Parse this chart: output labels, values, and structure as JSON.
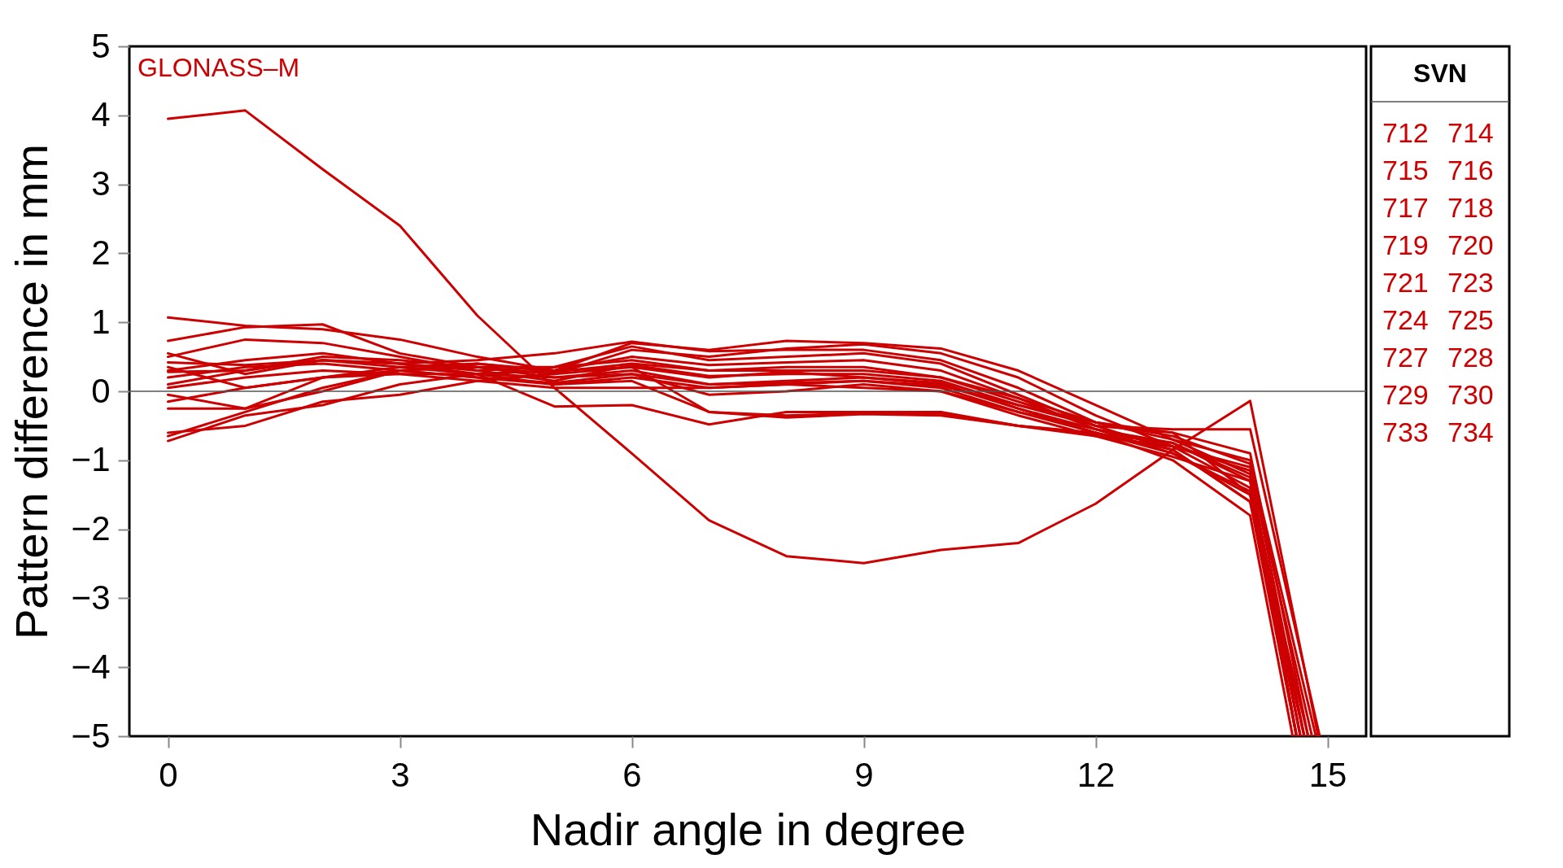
{
  "chart_data": {
    "type": "line",
    "xlabel": "Nadir angle in degree",
    "ylabel": "Pattern difference in mm",
    "legend_title": "SVN",
    "legend": "right",
    "grid": false,
    "line_style": "solid",
    "annotations": [
      "GLONASS–M"
    ],
    "xlim": [
      -0.5,
      15.5
    ],
    "xticks": [
      0,
      3,
      6,
      9,
      12,
      15
    ],
    "ylim": [
      -5,
      5
    ],
    "yticks": [
      -5,
      -4,
      -3,
      -2,
      -1,
      0,
      1,
      2,
      3,
      4,
      5
    ],
    "ref_lines": [
      {
        "axis": "y",
        "value": 0,
        "color": "#555555"
      }
    ],
    "series": [
      {
        "name": "712",
        "color": "#cc0000",
        "x": [
          0,
          1,
          2,
          3,
          4,
          5,
          6,
          7,
          8,
          9,
          10,
          11,
          12,
          13,
          14,
          14.88
        ],
        "values": [
          3.95,
          4.07,
          3.22,
          2.4,
          1.1,
          0.05,
          -0.9,
          -1.87,
          -2.39,
          -2.49,
          -2.3,
          -2.2,
          -1.63,
          -0.85,
          -0.14,
          -5
        ]
      },
      {
        "name": "714",
        "color": "#cc0000",
        "x": [
          0,
          1,
          2,
          3,
          4,
          5,
          6,
          7,
          8,
          9,
          10,
          11,
          12,
          13,
          14,
          14.85
        ],
        "values": [
          1.07,
          0.95,
          0.9,
          0.75,
          0.5,
          0.3,
          0.7,
          0.6,
          0.73,
          0.7,
          0.62,
          0.3,
          -0.2,
          -0.7,
          -1.0,
          -5
        ]
      },
      {
        "name": "715",
        "color": "#cc0000",
        "x": [
          0,
          1,
          2,
          3,
          4,
          5,
          6,
          7,
          8,
          9,
          10,
          11,
          12,
          13,
          14,
          14.8
        ],
        "values": [
          0.73,
          0.93,
          0.97,
          0.55,
          0.35,
          0.25,
          0.6,
          0.5,
          0.62,
          0.68,
          0.55,
          0.2,
          -0.35,
          -0.8,
          -1.1,
          -5
        ]
      },
      {
        "name": "716",
        "color": "#cc0000",
        "x": [
          0,
          1,
          2,
          3,
          4,
          5,
          6,
          7,
          8,
          9,
          10,
          11,
          12,
          13,
          14,
          14.75
        ],
        "values": [
          0.55,
          0.25,
          0.45,
          0.4,
          0.45,
          0.55,
          0.72,
          0.58,
          0.6,
          0.6,
          0.45,
          0.05,
          -0.45,
          -0.6,
          -1.5,
          -5
        ]
      },
      {
        "name": "717",
        "color": "#cc0000",
        "x": [
          0,
          1,
          2,
          3,
          4,
          5,
          6,
          7,
          8,
          9,
          10,
          11,
          12,
          13,
          14,
          14.7
        ],
        "values": [
          0.5,
          0.75,
          0.7,
          0.5,
          0.3,
          0.35,
          0.65,
          0.45,
          0.5,
          0.55,
          0.4,
          -0.05,
          -0.5,
          -0.85,
          -1.6,
          -5
        ]
      },
      {
        "name": "718",
        "color": "#cc0000",
        "x": [
          0,
          1,
          2,
          3,
          4,
          5,
          6,
          7,
          8,
          9,
          10,
          11,
          12,
          13,
          14,
          14.7
        ],
        "values": [
          0.42,
          0.38,
          0.45,
          0.35,
          0.25,
          0.3,
          0.5,
          0.38,
          0.42,
          0.45,
          0.3,
          -0.1,
          -0.55,
          -0.75,
          -1.3,
          -5
        ]
      },
      {
        "name": "719",
        "color": "#cc0000",
        "x": [
          0,
          1,
          2,
          3,
          4,
          5,
          6,
          7,
          8,
          9,
          10,
          11,
          12,
          13,
          14,
          14.9
        ],
        "values": [
          0.35,
          0.05,
          0.2,
          0.35,
          0.4,
          0.28,
          0.4,
          0.3,
          0.3,
          0.3,
          0.2,
          -0.15,
          -0.5,
          -0.55,
          -0.55,
          -5
        ]
      },
      {
        "name": "720",
        "color": "#cc0000",
        "x": [
          0,
          1,
          2,
          3,
          4,
          5,
          6,
          7,
          8,
          9,
          10,
          11,
          12,
          13,
          14,
          14.65
        ],
        "values": [
          0.3,
          0.45,
          0.55,
          0.4,
          0.3,
          0.15,
          0.38,
          0.22,
          0.25,
          0.25,
          0.15,
          -0.2,
          -0.45,
          -0.7,
          -1.2,
          -5
        ]
      },
      {
        "name": "721",
        "color": "#cc0000",
        "x": [
          0,
          1,
          2,
          3,
          4,
          5,
          6,
          7,
          8,
          9,
          10,
          11,
          12,
          13,
          14,
          14.65
        ],
        "values": [
          0.28,
          0.3,
          0.5,
          0.45,
          0.35,
          0.2,
          0.3,
          0.1,
          0.15,
          0.2,
          0.1,
          -0.25,
          -0.55,
          -0.8,
          -1.4,
          -5
        ]
      },
      {
        "name": "723",
        "color": "#cc0000",
        "x": [
          0,
          1,
          2,
          3,
          4,
          5,
          6,
          7,
          8,
          9,
          10,
          11,
          12,
          13,
          14,
          14.6
        ],
        "values": [
          0.1,
          0.3,
          0.45,
          0.4,
          0.25,
          0.1,
          0.2,
          0.05,
          0.1,
          0.15,
          0.05,
          -0.3,
          -0.6,
          -0.9,
          -1.45,
          -5
        ]
      },
      {
        "name": "724",
        "color": "#cc0000",
        "x": [
          0,
          1,
          2,
          3,
          4,
          5,
          6,
          7,
          8,
          9,
          10,
          11,
          12,
          13,
          14,
          14.6
        ],
        "values": [
          -0.05,
          -0.25,
          0.2,
          0.3,
          0.2,
          0.12,
          0.25,
          -0.05,
          0.0,
          0.1,
          0.0,
          -0.35,
          -0.65,
          -0.95,
          -1.3,
          -5
        ]
      },
      {
        "name": "725",
        "color": "#cc0000",
        "x": [
          0,
          1,
          2,
          3,
          4,
          5,
          6,
          7,
          8,
          9,
          10,
          11,
          12,
          13,
          14,
          14.75
        ],
        "values": [
          -0.15,
          0.05,
          0.2,
          0.25,
          0.25,
          0.2,
          0.25,
          0.1,
          0.12,
          0.15,
          0.08,
          -0.2,
          -0.5,
          -0.6,
          -0.9,
          -5
        ]
      },
      {
        "name": "727",
        "color": "#cc0000",
        "x": [
          0,
          1,
          2,
          3,
          4,
          5,
          6,
          7,
          8,
          9,
          10,
          11,
          12,
          13,
          14,
          14.7
        ],
        "values": [
          -0.25,
          -0.25,
          0.0,
          0.3,
          0.35,
          0.35,
          0.45,
          0.3,
          0.35,
          0.35,
          0.2,
          -0.1,
          -0.45,
          -0.65,
          -1.05,
          -5
        ]
      },
      {
        "name": "728",
        "color": "#cc0000",
        "x": [
          0,
          1,
          2,
          3,
          4,
          5,
          6,
          7,
          8,
          9,
          10,
          11,
          12,
          13,
          14,
          14.55
        ],
        "values": [
          -0.6,
          -0.5,
          -0.15,
          -0.05,
          0.15,
          0.25,
          0.35,
          0.2,
          0.28,
          0.2,
          0.12,
          -0.25,
          -0.6,
          -1.0,
          -1.8,
          -5
        ]
      },
      {
        "name": "729",
        "color": "#cc0000",
        "x": [
          0,
          1,
          2,
          3,
          4,
          5,
          6,
          7,
          8,
          9,
          10,
          11,
          12,
          13,
          14,
          14.6
        ],
        "values": [
          -0.65,
          -0.3,
          0.05,
          0.3,
          0.4,
          0.3,
          0.35,
          -0.3,
          -0.38,
          -0.33,
          -0.35,
          -0.5,
          -0.65,
          -0.8,
          -1.15,
          -5
        ]
      },
      {
        "name": "730",
        "color": "#cc0000",
        "x": [
          0,
          1,
          2,
          3,
          4,
          5,
          6,
          7,
          8,
          9,
          10,
          11,
          12,
          13,
          14,
          14.6
        ],
        "values": [
          -0.72,
          -0.35,
          -0.2,
          0.1,
          0.25,
          -0.22,
          -0.2,
          -0.48,
          -0.3,
          -0.3,
          -0.3,
          -0.5,
          -0.6,
          -0.85,
          -1.6,
          -5
        ]
      },
      {
        "name": "733",
        "color": "#cc0000",
        "x": [
          0,
          1,
          2,
          3,
          4,
          5,
          6,
          7,
          8,
          9,
          10,
          11,
          12,
          13,
          14,
          14.6
        ],
        "values": [
          0.05,
          0.2,
          0.3,
          0.25,
          0.15,
          0.05,
          0.05,
          0.05,
          0.1,
          0.05,
          0.0,
          -0.3,
          -0.55,
          -0.9,
          -1.5,
          -5
        ]
      },
      {
        "name": "734",
        "color": "#cc0000",
        "x": [
          0,
          1,
          2,
          3,
          4,
          5,
          6,
          7,
          8,
          9,
          10,
          11,
          12,
          13,
          14,
          14.65
        ],
        "values": [
          0.2,
          0.35,
          0.4,
          0.3,
          0.2,
          0.1,
          0.15,
          -0.3,
          -0.35,
          -0.32,
          -0.32,
          -0.5,
          -0.62,
          -0.75,
          -1.25,
          -5
        ]
      }
    ]
  }
}
